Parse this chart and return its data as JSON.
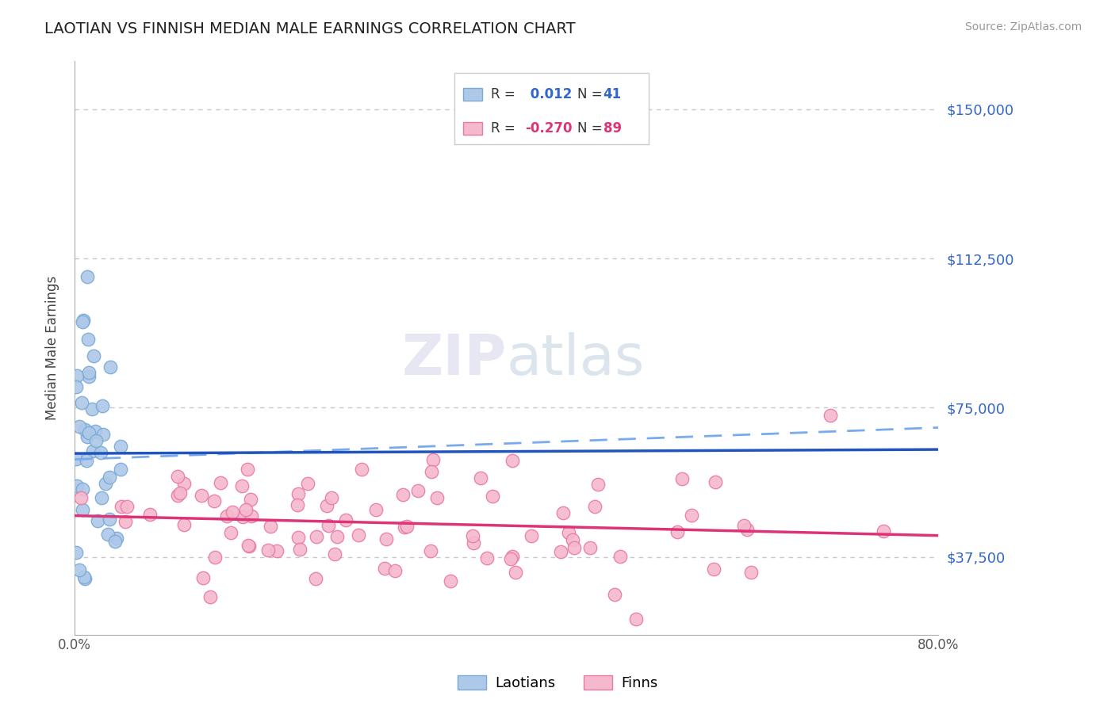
{
  "title": "LAOTIAN VS FINNISH MEDIAN MALE EARNINGS CORRELATION CHART",
  "source": "Source: ZipAtlas.com",
  "ylabel": "Median Male Earnings",
  "xlim": [
    0.0,
    0.8
  ],
  "ylim": [
    18000,
    162000
  ],
  "yticks": [
    37500,
    75000,
    112500,
    150000
  ],
  "ytick_labels": [
    "$37,500",
    "$75,000",
    "$112,500",
    "$150,000"
  ],
  "background_color": "#ffffff",
  "grid_color": "#c8c8c8",
  "laotian_color": "#adc8e8",
  "laotian_edge_color": "#7aaad4",
  "finn_color": "#f5b8cc",
  "finn_edge_color": "#e87aaa",
  "laotian_line_color": "#2255bb",
  "finn_line_color": "#dd3377",
  "blue_dash_color": "#7aaaee",
  "R_laotian": 0.012,
  "N_laotian": 41,
  "R_finn": -0.27,
  "N_finn": 89
}
